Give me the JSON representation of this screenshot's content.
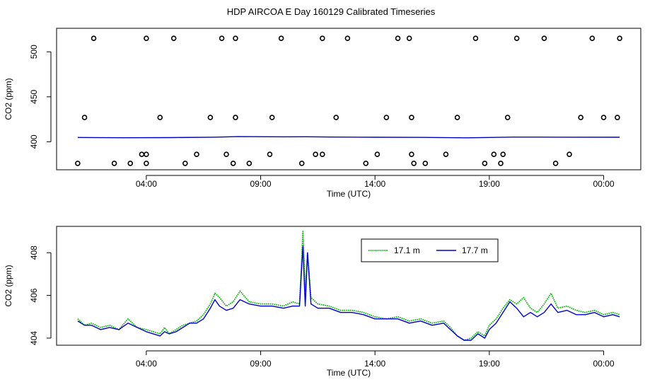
{
  "page": {
    "title": "HDP AIRCOA E  Day 160129  Calibrated Timeseries"
  },
  "chart_data": [
    {
      "type": "scatter",
      "xlabel": "Time (UTC)",
      "ylabel": "CO2 (ppm)",
      "x_unit": "hours from 00:00 UTC of day 160129",
      "xlim": [
        0.2,
        25.5
      ],
      "ylim": [
        372,
        523
      ],
      "xticks": [
        4,
        9,
        14,
        19,
        24
      ],
      "xtick_labels": [
        "04:00",
        "09:00",
        "14:00",
        "19:00",
        "00:00"
      ],
      "yticks": [
        400,
        450,
        500
      ],
      "ytick_labels": [
        "400",
        "450",
        "500"
      ],
      "grid": false,
      "series": [
        {
          "kind": "line",
          "color": "#0000cc",
          "x": [
            1.0,
            3.0,
            5.0,
            7.0,
            8.0,
            10.0,
            11.0,
            12.0,
            14.0,
            16.0,
            18.0,
            19.0,
            20.0,
            22.0,
            24.7
          ],
          "y": [
            404.8,
            404.5,
            404.6,
            405.1,
            405.7,
            405.5,
            405.6,
            405.3,
            405.0,
            404.9,
            404.4,
            404.8,
            405.2,
            405.1,
            405.0
          ]
        },
        {
          "kind": "points",
          "color": "#000000",
          "x": [
            1.7,
            4.0,
            5.2,
            7.3,
            7.9,
            9.9,
            11.7,
            12.8,
            15.0,
            15.5,
            18.4,
            20.2,
            21.4,
            23.5,
            24.7,
            1.3,
            4.6,
            6.8,
            7.9,
            9.5,
            12.3,
            14.5,
            15.6,
            17.6,
            19.8,
            23.0,
            24.6,
            24.0,
            2.6,
            3.3,
            4.0,
            5.7,
            6.2,
            7.5,
            8.5,
            9.4,
            10.8,
            11.4,
            13.6,
            14.1,
            15.7,
            16.2,
            17.1,
            18.8,
            19.2,
            21.9,
            22.5,
            1.0,
            3.8,
            4.0,
            7.8,
            11.7,
            15.6,
            19.6,
            19.5
          ],
          "y": [
            515,
            515,
            515,
            515,
            515,
            515,
            515,
            515,
            515,
            515,
            515,
            515,
            515,
            515,
            515,
            427,
            427,
            427,
            427,
            427,
            427,
            427,
            427,
            427,
            427,
            427,
            427,
            427,
            376,
            376,
            376,
            376,
            386,
            386,
            376,
            386,
            376,
            386,
            376,
            386,
            376,
            376,
            386,
            376,
            386,
            376,
            386,
            376,
            386,
            386,
            376,
            386,
            386,
            386,
            376
          ]
        }
      ]
    },
    {
      "type": "line",
      "xlabel": "Time (UTC)",
      "ylabel": "CO2 (ppm)",
      "x_unit": "hours from 00:00 UTC of day 160129",
      "xlim": [
        0.2,
        25.5
      ],
      "ylim": [
        403.8,
        409.1
      ],
      "xticks": [
        4,
        9,
        14,
        19,
        24
      ],
      "xtick_labels": [
        "04:00",
        "09:00",
        "14:00",
        "19:00",
        "00:00"
      ],
      "yticks": [
        404,
        406,
        408
      ],
      "ytick_labels": [
        "404",
        "406",
        "408"
      ],
      "grid": false,
      "legend": {
        "placement": "top-right"
      },
      "series": [
        {
          "name": "17.1 m",
          "color": "#00b000",
          "style": "dotted",
          "x": [
            1.0,
            1.3,
            1.6,
            2.0,
            2.4,
            2.8,
            3.2,
            3.6,
            4.0,
            4.3,
            4.6,
            4.8,
            5.0,
            5.3,
            5.6,
            5.9,
            6.2,
            6.5,
            6.8,
            7.0,
            7.2,
            7.5,
            7.8,
            8.1,
            8.5,
            9.0,
            9.5,
            10.0,
            10.4,
            10.7,
            10.85,
            10.95,
            11.05,
            11.2,
            11.5,
            12.0,
            12.5,
            13.0,
            13.5,
            14.0,
            14.5,
            15.0,
            15.5,
            16.0,
            16.5,
            17.0,
            17.3,
            17.6,
            17.9,
            18.2,
            18.5,
            18.8,
            19.0,
            19.3,
            19.6,
            19.9,
            20.2,
            20.5,
            20.8,
            21.1,
            21.4,
            21.7,
            22.0,
            22.4,
            22.8,
            23.2,
            23.6,
            24.0,
            24.4,
            24.7
          ],
          "y": [
            404.9,
            404.6,
            404.7,
            404.5,
            404.6,
            404.4,
            404.9,
            404.5,
            404.4,
            404.3,
            404.2,
            404.5,
            404.2,
            404.4,
            404.6,
            404.7,
            404.8,
            405.1,
            405.6,
            406.1,
            405.9,
            405.5,
            405.7,
            406.2,
            405.7,
            405.6,
            405.6,
            405.5,
            405.7,
            405.6,
            409.0,
            406.2,
            408.0,
            405.9,
            405.6,
            405.5,
            405.3,
            405.3,
            405.2,
            405.0,
            404.9,
            405.0,
            404.8,
            404.9,
            404.7,
            404.8,
            404.5,
            404.1,
            403.9,
            404.0,
            404.3,
            404.1,
            404.6,
            404.9,
            405.4,
            405.8,
            405.6,
            405.9,
            405.4,
            405.2,
            405.6,
            406.1,
            405.4,
            405.5,
            405.3,
            405.2,
            405.3,
            405.1,
            405.2,
            405.1
          ]
        },
        {
          "name": "17.7 m",
          "color": "#0000cc",
          "style": "solid",
          "x": [
            1.0,
            1.3,
            1.6,
            2.0,
            2.4,
            2.8,
            3.2,
            3.6,
            4.0,
            4.3,
            4.6,
            4.8,
            5.0,
            5.3,
            5.6,
            5.9,
            6.2,
            6.5,
            6.8,
            7.0,
            7.2,
            7.5,
            7.8,
            8.1,
            8.5,
            9.0,
            9.5,
            10.0,
            10.4,
            10.7,
            10.85,
            10.95,
            11.05,
            11.2,
            11.5,
            12.0,
            12.5,
            13.0,
            13.5,
            14.0,
            14.5,
            15.0,
            15.5,
            16.0,
            16.5,
            17.0,
            17.3,
            17.6,
            17.9,
            18.2,
            18.5,
            18.8,
            19.0,
            19.3,
            19.6,
            19.9,
            20.2,
            20.5,
            20.8,
            21.1,
            21.4,
            21.7,
            22.0,
            22.4,
            22.8,
            23.2,
            23.6,
            24.0,
            24.4,
            24.7
          ],
          "y": [
            404.8,
            404.6,
            404.6,
            404.4,
            404.5,
            404.4,
            404.7,
            404.5,
            404.3,
            404.2,
            404.1,
            404.3,
            404.2,
            404.3,
            404.5,
            404.7,
            404.7,
            404.9,
            405.4,
            405.8,
            405.5,
            405.3,
            405.4,
            405.8,
            405.6,
            405.5,
            405.5,
            405.4,
            405.5,
            405.5,
            408.3,
            405.5,
            408.0,
            405.6,
            405.4,
            405.4,
            405.2,
            405.2,
            405.1,
            404.9,
            404.9,
            404.9,
            404.7,
            404.8,
            404.6,
            404.7,
            404.4,
            404.1,
            403.9,
            403.9,
            404.2,
            404.0,
            404.4,
            404.7,
            405.2,
            405.7,
            405.4,
            405.0,
            405.2,
            405.0,
            405.2,
            405.6,
            405.2,
            405.3,
            405.1,
            405.1,
            405.2,
            405.0,
            405.1,
            405.0
          ]
        }
      ]
    }
  ]
}
